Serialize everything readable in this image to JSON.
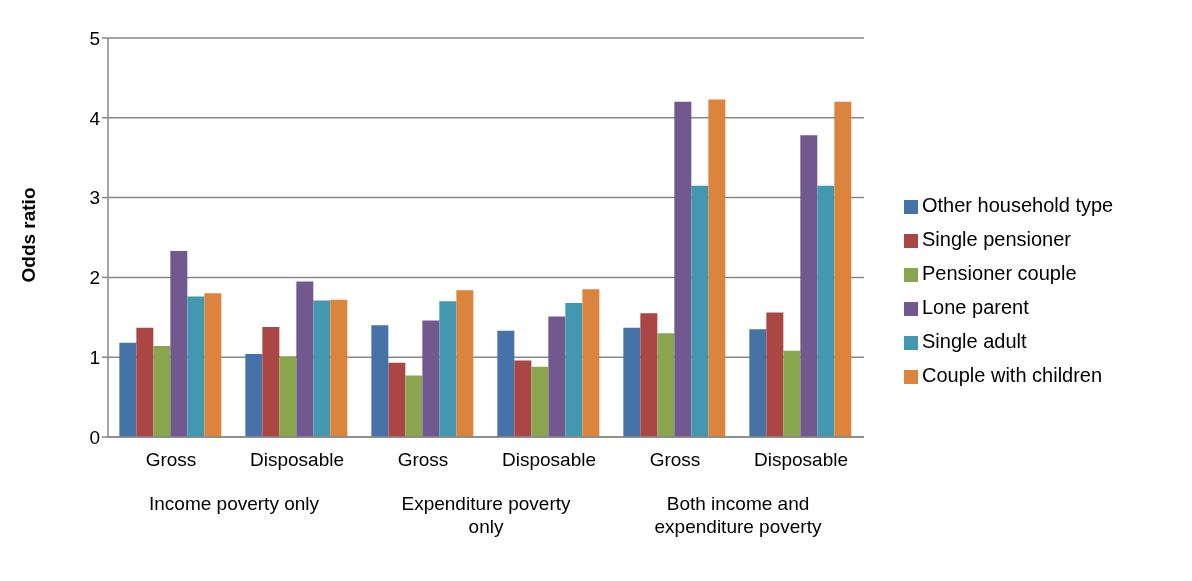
{
  "chart_data": {
    "type": "bar",
    "ylabel": "Odds ratio",
    "categories": [
      "Gross",
      "Disposable",
      "Gross",
      "Disposable",
      "Gross",
      "Disposable"
    ],
    "annotations": [
      "Income poverty only",
      "Expenditure poverty only",
      "Both income and expenditure poverty"
    ],
    "series": [
      {
        "name": "Other household type",
        "color": "#4572a7",
        "values": [
          1.18,
          1.04,
          1.4,
          1.33,
          1.37,
          1.35
        ]
      },
      {
        "name": "Single pensioner",
        "color": "#aa4643",
        "values": [
          1.37,
          1.38,
          0.93,
          0.96,
          1.55,
          1.56
        ]
      },
      {
        "name": "Pensioner couple",
        "color": "#89a54e",
        "values": [
          1.14,
          1.01,
          0.77,
          0.88,
          1.3,
          1.08
        ]
      },
      {
        "name": "Lone parent",
        "color": "#71588f",
        "values": [
          2.33,
          1.95,
          1.46,
          1.51,
          4.2,
          3.78
        ]
      },
      {
        "name": "Single adult",
        "color": "#4198af",
        "values": [
          1.76,
          1.71,
          1.7,
          1.68,
          3.15,
          3.15
        ]
      },
      {
        "name": "Couple with children",
        "color": "#db843d",
        "values": [
          1.8,
          1.72,
          1.84,
          1.85,
          4.23,
          4.2
        ]
      }
    ],
    "ylim": [
      0,
      5
    ],
    "yticks": [
      0,
      1,
      2,
      3,
      4,
      5
    ],
    "grid": "y",
    "legend": "right"
  }
}
